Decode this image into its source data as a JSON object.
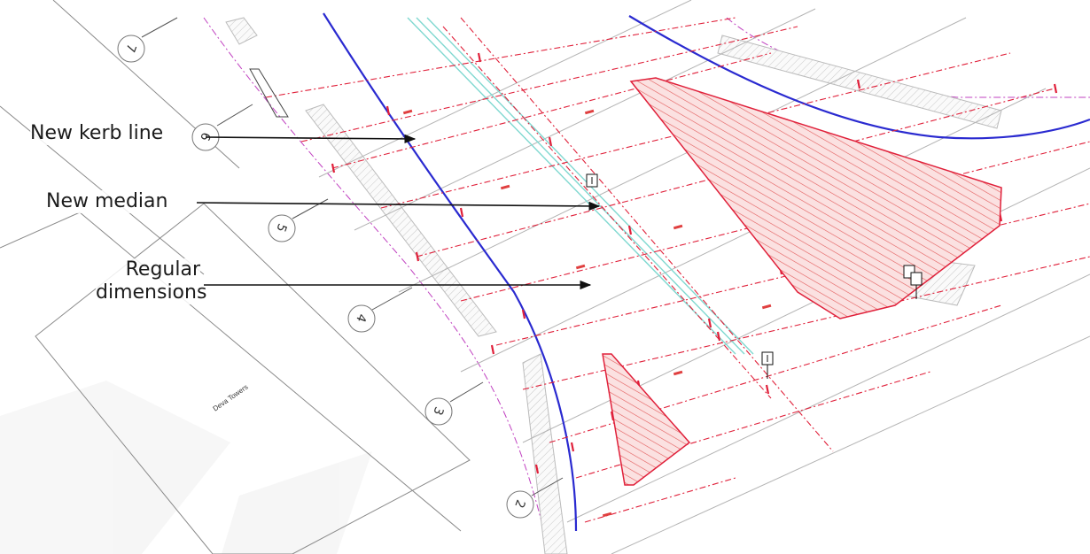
{
  "callouts": {
    "kerb": "New kerb line",
    "median": "New median",
    "regular_line1": "Regular",
    "regular_line2": "dimensions"
  },
  "building_label": "Deva Towers",
  "grid_bubbles": [
    "7",
    "6",
    "5",
    "4",
    "3",
    "2"
  ],
  "colors": {
    "kerb_line": "#2a2ad0",
    "dimension": "#e0203a",
    "hatch": "#f08080",
    "median": "#7fd8d0",
    "boundary": "#c040c0"
  }
}
